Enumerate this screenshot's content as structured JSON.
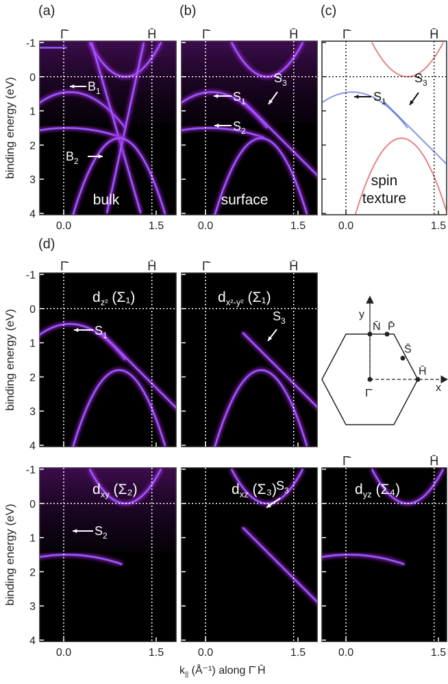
{
  "panel_labels": [
    "(a)",
    "(b)",
    "(c)",
    "(d)"
  ],
  "axes": {
    "yticks": [
      -1,
      0,
      1,
      2,
      3,
      4
    ],
    "xticks": [
      {
        "value": 0,
        "label": "0.0"
      },
      {
        "value": 1.5,
        "label": "1.5"
      }
    ],
    "ylabel": "binding energy (eV)",
    "xlabel": {
      "k": "k",
      "sub": "||",
      "rest": " (Å⁻¹) along Γ̄ H̄"
    },
    "gamma": "Γ̄",
    "h": "H̄"
  },
  "panels": [
    {
      "tag": [
        "bulk"
      ],
      "annotations": [
        {
          "text": "B",
          "sub": "1"
        },
        {
          "text": "B",
          "sub": "2"
        }
      ]
    },
    {
      "tag": [
        "surface"
      ],
      "annotations": [
        {
          "text": "S",
          "sub": "1"
        },
        {
          "text": "S",
          "sub": "2"
        },
        {
          "text": "S",
          "sub": "3"
        }
      ]
    },
    {
      "tag": [
        "spin",
        "texture"
      ],
      "annotations": [
        {
          "text": "S",
          "sub": "1"
        },
        {
          "text": "S",
          "sub": "3"
        }
      ]
    },
    {
      "orbital": {
        "text": "d",
        "sub": "z²",
        "rest": " (Σ₁)"
      },
      "annotations": [
        {
          "text": "S",
          "sub": "1"
        }
      ]
    },
    {
      "orbital": {
        "text": "d",
        "sub": "x²-y²",
        "rest": " (Σ₁)"
      },
      "annotations": [
        {
          "text": "S",
          "sub": "3"
        }
      ]
    },
    {
      "orbital": {
        "text": "d",
        "sub": "xy",
        "rest": " (Σ₂)"
      },
      "annotations": [
        {
          "text": "S",
          "sub": "2"
        }
      ]
    },
    {
      "orbital": {
        "text": "d",
        "sub": "xz",
        "rest": " (Σ₃)"
      },
      "annotations": [
        {
          "text": "S",
          "sub": "3"
        }
      ]
    },
    {
      "orbital": {
        "text": "d",
        "sub": "yz",
        "rest": " (Σ₄)"
      },
      "annotations": []
    }
  ],
  "bz": {
    "axis_x": "x",
    "axis_y": "y",
    "points": [
      "N̄",
      "P̄",
      "S̄",
      "H̄",
      "Γ̄"
    ]
  }
}
